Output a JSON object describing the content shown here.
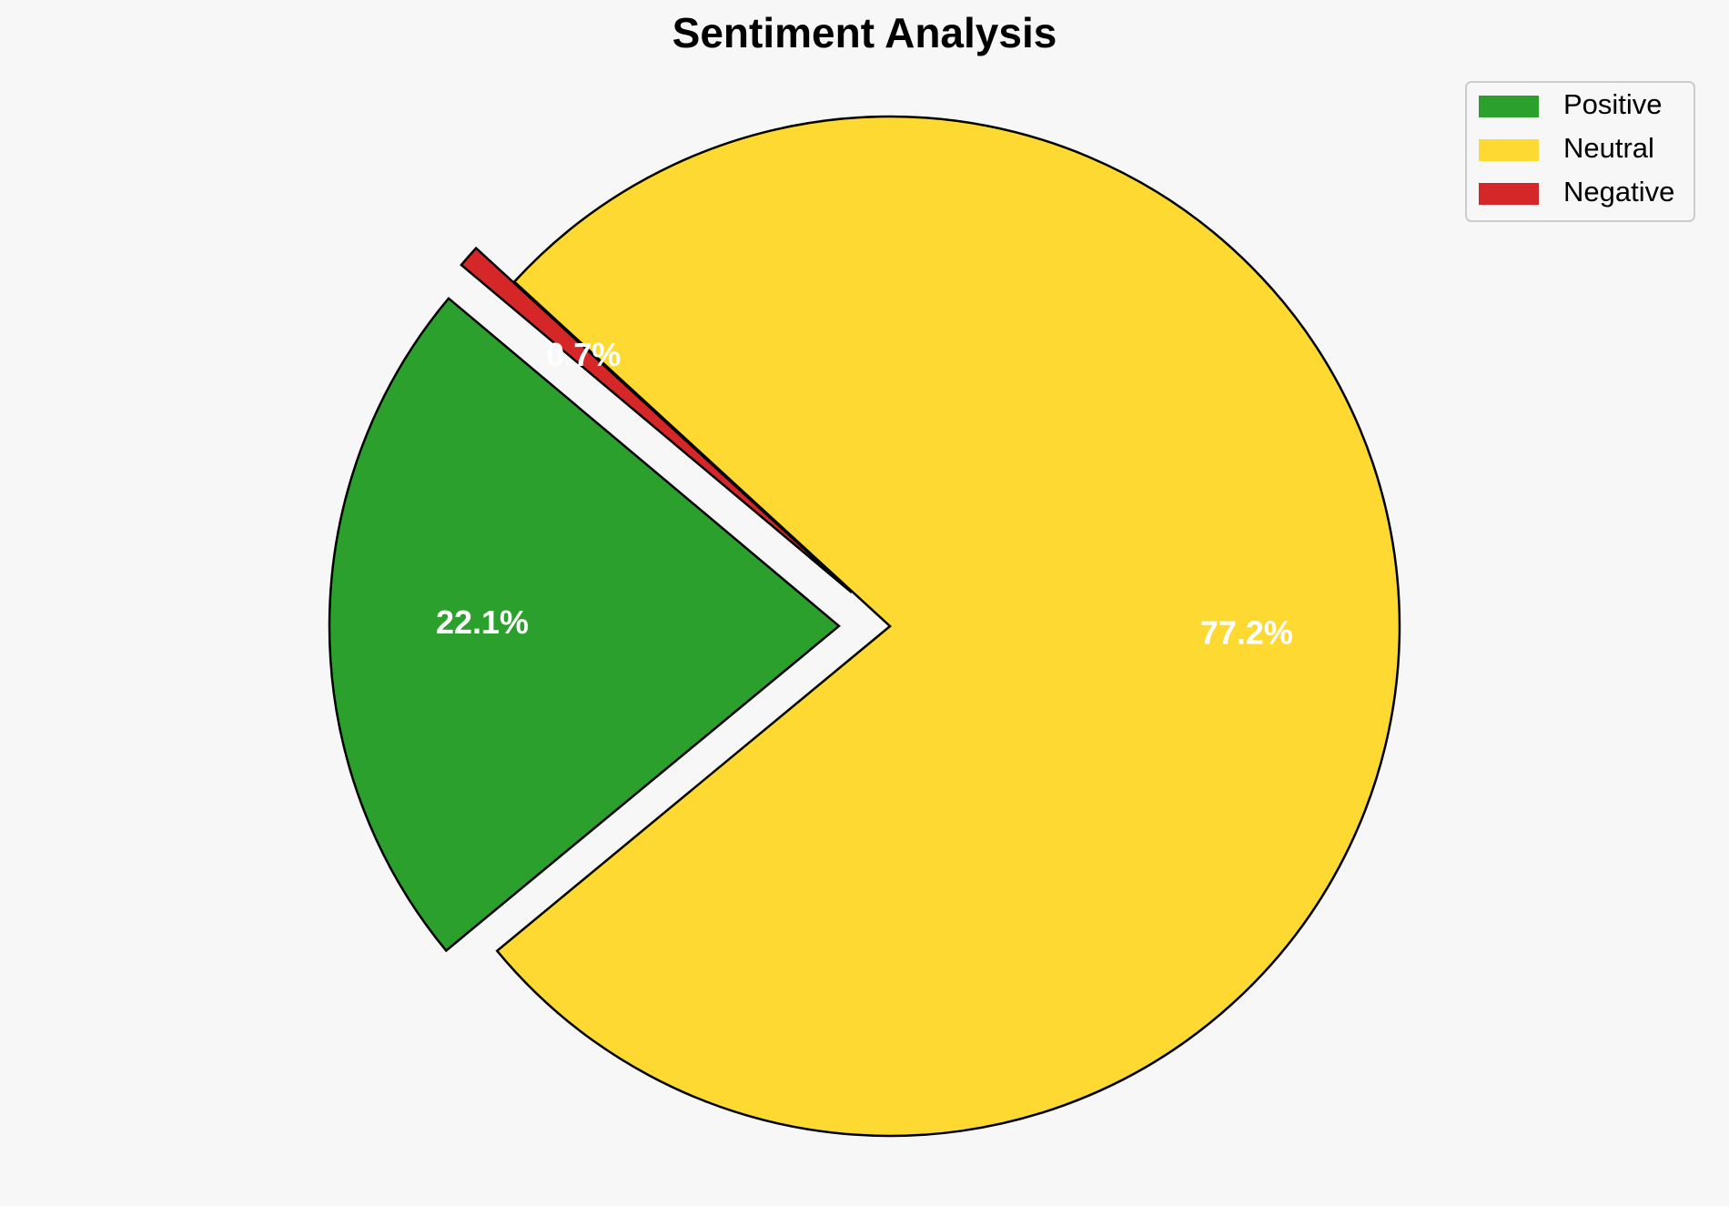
{
  "chart_data": {
    "type": "pie",
    "title": "Sentiment Analysis",
    "labels": [
      "Positive",
      "Neutral",
      "Negative"
    ],
    "values": [
      22.1,
      77.2,
      0.7
    ],
    "value_labels": [
      "22.1%",
      "77.2%",
      "0.7%"
    ],
    "colors": [
      "#2ca02c",
      "#fdd932",
      "#d62728"
    ],
    "exploded": [
      true,
      false,
      true
    ],
    "start_angle_deg": 140,
    "direction": "counterclockwise",
    "edge_color": "#000000",
    "label_color": "#ffffff",
    "legend_position": "top-right"
  },
  "background": "#f7f7f7"
}
